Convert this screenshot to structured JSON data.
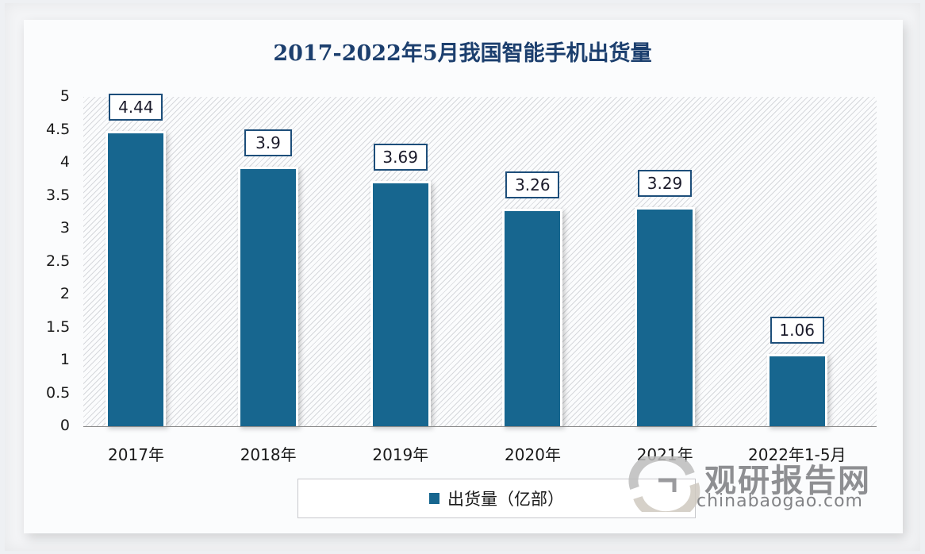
{
  "chart_data": {
    "type": "bar",
    "title": "2017-2022年5月我国智能手机出货量",
    "categories": [
      "2017年",
      "2018年",
      "2019年",
      "2020年",
      "2021年",
      "2022年1-5月"
    ],
    "series": [
      {
        "name": "出货量（亿部）",
        "values": [
          4.44,
          3.9,
          3.69,
          3.26,
          3.29,
          1.06
        ],
        "color": "#17668f"
      }
    ],
    "value_labels": [
      "4.44",
      "3.9",
      "3.69",
      "3.26",
      "3.29",
      "1.06"
    ],
    "xlabel": "",
    "ylabel": "",
    "ylim": [
      0,
      5
    ],
    "yticks": [
      "0",
      "0.5",
      "1",
      "1.5",
      "2",
      "2.5",
      "3",
      "3.5",
      "4",
      "4.5",
      "5"
    ],
    "grid": false,
    "legend_position": "bottom"
  },
  "legend": {
    "label": "出货量（亿部）"
  },
  "watermark": {
    "cn": "观研报告网",
    "en": "chinabaogao.com"
  }
}
